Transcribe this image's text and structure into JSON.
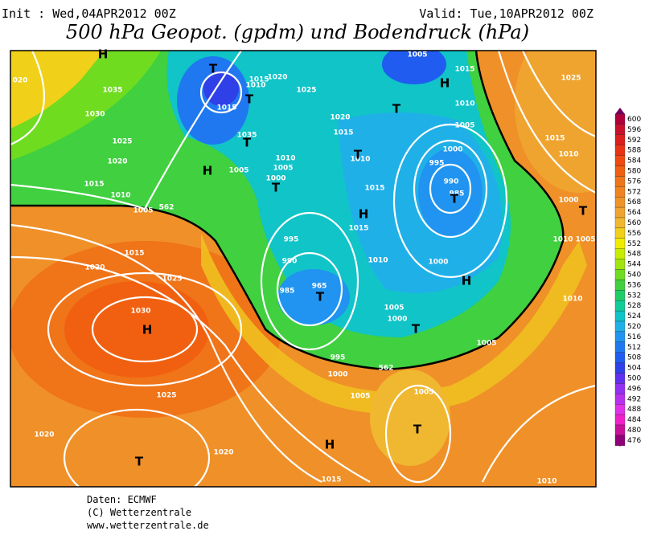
{
  "header": {
    "init": "Init : Wed,04APR2012 00Z",
    "valid": "Valid: Tue,10APR2012 00Z",
    "title": "500 hPa Geopot. (gpdm) und Bodendruck (hPa)"
  },
  "colorbar": {
    "levels": [
      600,
      596,
      592,
      588,
      584,
      580,
      576,
      572,
      568,
      564,
      560,
      556,
      552,
      548,
      544,
      540,
      536,
      532,
      528,
      524,
      520,
      516,
      512,
      508,
      504,
      500,
      496,
      492,
      488,
      484,
      480,
      476
    ],
    "colors": [
      "#b0003c",
      "#c8102c",
      "#dc1e1e",
      "#ea3214",
      "#f04a10",
      "#f06010",
      "#f07418",
      "#f08420",
      "#f09428",
      "#f0a430",
      "#f0b830",
      "#f0d018",
      "#f0ec00",
      "#c8ec00",
      "#a0e410",
      "#70dc20",
      "#40d040",
      "#20cc68",
      "#10cc98",
      "#10c4c8",
      "#20b0e8",
      "#2094f0",
      "#2078f0",
      "#205cf0",
      "#3040e8",
      "#6030f0",
      "#9030f0",
      "#b830f0",
      "#e030e8",
      "#f020c8",
      "#c81098",
      "#900078"
    ]
  },
  "map": {
    "isobar_labels": [
      "020",
      "1035",
      "1030",
      "1025",
      "1020",
      "1015",
      "1010",
      "1005",
      "562",
      "1015",
      "1020",
      "1025",
      "1030",
      "1025",
      "1020",
      "1020",
      "1015",
      "1005",
      "1005",
      "1010",
      "1005",
      "1000",
      "1005",
      "1000",
      "995",
      "985",
      "965",
      "990",
      "995",
      "1000",
      "1005",
      "1010",
      "1005",
      "1035",
      "1015",
      "1015",
      "1010",
      "1020",
      "1025",
      "1020",
      "1015",
      "1010",
      "1015",
      "1015",
      "1010",
      "1000",
      "995",
      "1000",
      "990",
      "985",
      "1005",
      "1010",
      "1015",
      "1005",
      "1025",
      "1015",
      "1010",
      "1000",
      "1010",
      "1005",
      "1010",
      "562"
    ],
    "centers": [
      "H",
      "T",
      "T",
      "T",
      "H",
      "T",
      "H",
      "T",
      "H",
      "T",
      "T",
      "H",
      "T",
      "H",
      "T",
      "T",
      "H",
      "T",
      "T"
    ]
  },
  "footer": {
    "source": "Daten: ECMWF",
    "copyright": "(C) Wetterzentrale",
    "url": "www.wetterzentrale.de"
  }
}
